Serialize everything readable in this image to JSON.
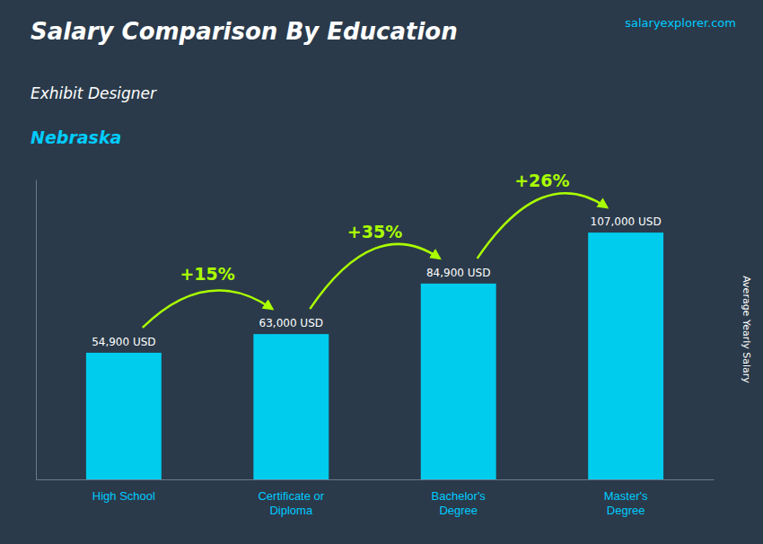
{
  "chart_data": {
    "type": "bar",
    "title": "Salary Comparison By Education",
    "subtitle": "Exhibit Designer",
    "location": "Nebraska",
    "source": "salaryexplorer.com",
    "ylabel": "Average Yearly Salary",
    "categories": [
      "High School",
      "Certificate or\nDiploma",
      "Bachelor's\nDegree",
      "Master's\nDegree"
    ],
    "values": [
      54900,
      63000,
      84900,
      107000
    ],
    "value_labels": [
      "54,900 USD",
      "63,000 USD",
      "84,900 USD",
      "107,000 USD"
    ],
    "data_labels": true,
    "annotations": [
      "+15%",
      "+35%",
      "+26%"
    ],
    "color": "#00ccee",
    "ylim": [
      0,
      130000
    ],
    "tick_labels": "x",
    "grid": false
  }
}
